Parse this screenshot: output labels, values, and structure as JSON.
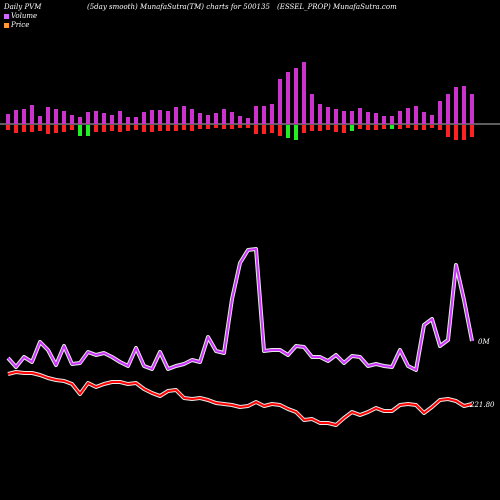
{
  "header": {
    "left": "Daily PVM",
    "center": "(5day smooth) MunafaSutra(TM) charts for 500135",
    "right": "(ESSEL_PROP) MunafaSutra.com"
  },
  "legend": [
    {
      "label": "Volume",
      "color": "#cc66ff"
    },
    {
      "label": "Price",
      "color": "#ff9933"
    }
  ],
  "colors": {
    "up_bar": "#cc33cc",
    "down_bar": "#ff2222",
    "green_bar": "#22ee22",
    "volume_line": "#cc33ff",
    "price_line": "#ff0000",
    "baseline": "#bbbbbb"
  },
  "chart_data": {
    "type": "line",
    "volume_bars": {
      "up": [
        10,
        14,
        15,
        19,
        8,
        17,
        15,
        13,
        9,
        7,
        12,
        13,
        11,
        9,
        13,
        7,
        7,
        12,
        14,
        14,
        13,
        17,
        18,
        15,
        11,
        9,
        11,
        15,
        12,
        8,
        6,
        18,
        18,
        20,
        45,
        52,
        56,
        62,
        30,
        20,
        17,
        15,
        13,
        13,
        16,
        12,
        11,
        8,
        8,
        13,
        16,
        18,
        12,
        9,
        23,
        30,
        37,
        38,
        30
      ],
      "down": [
        5,
        8,
        7,
        7,
        6,
        9,
        8,
        7,
        5,
        4,
        6,
        7,
        7,
        6,
        7,
        6,
        5,
        7,
        7,
        6,
        6,
        6,
        5,
        6,
        4,
        4,
        3,
        4,
        4,
        3,
        3,
        9,
        9,
        8,
        11,
        14,
        11,
        8,
        6,
        6,
        5,
        7,
        8,
        6,
        4,
        5,
        5,
        4,
        4,
        4,
        3,
        5,
        5,
        3,
        5,
        12,
        15,
        15,
        12
      ],
      "green": [
        0,
        0,
        0,
        0,
        0,
        0,
        0,
        0,
        0,
        11,
        11,
        0,
        0,
        0,
        0,
        0,
        0,
        0,
        0,
        0,
        0,
        0,
        0,
        0,
        0,
        0,
        0,
        0,
        0,
        0,
        0,
        0,
        0,
        0,
        0,
        13,
        15,
        0,
        0,
        0,
        0,
        0,
        0,
        6,
        0,
        0,
        0,
        0,
        4,
        0,
        0,
        0,
        0,
        0,
        0,
        0,
        0,
        0,
        0
      ]
    },
    "volume_line": [
      358,
      367,
      357,
      362,
      342,
      350,
      365,
      346,
      364,
      363,
      352,
      355,
      353,
      357,
      362,
      366,
      348,
      366,
      369,
      352,
      369,
      366,
      364,
      360,
      362,
      337,
      351,
      353,
      299,
      263,
      250,
      249,
      351,
      350,
      350,
      355,
      346,
      347,
      357,
      357,
      361,
      355,
      363,
      356,
      357,
      366,
      364,
      366,
      367,
      350,
      366,
      370,
      325,
      319,
      346,
      340,
      265,
      300,
      341
    ],
    "price_line": [
      374,
      372,
      373,
      373,
      375,
      378,
      380,
      381,
      384,
      394,
      383,
      387,
      384,
      382,
      382,
      384,
      383,
      389,
      393,
      396,
      391,
      390,
      398,
      399,
      398,
      400,
      403,
      404,
      405,
      407,
      406,
      402,
      406,
      404,
      405,
      409,
      412,
      420,
      419,
      423,
      423,
      425,
      418,
      412,
      415,
      412,
      408,
      411,
      411,
      405,
      404,
      405,
      413,
      407,
      400,
      399,
      401,
      406,
      404
    ],
    "labels": {
      "volume_end": "0M",
      "price_end": "221.80"
    }
  }
}
